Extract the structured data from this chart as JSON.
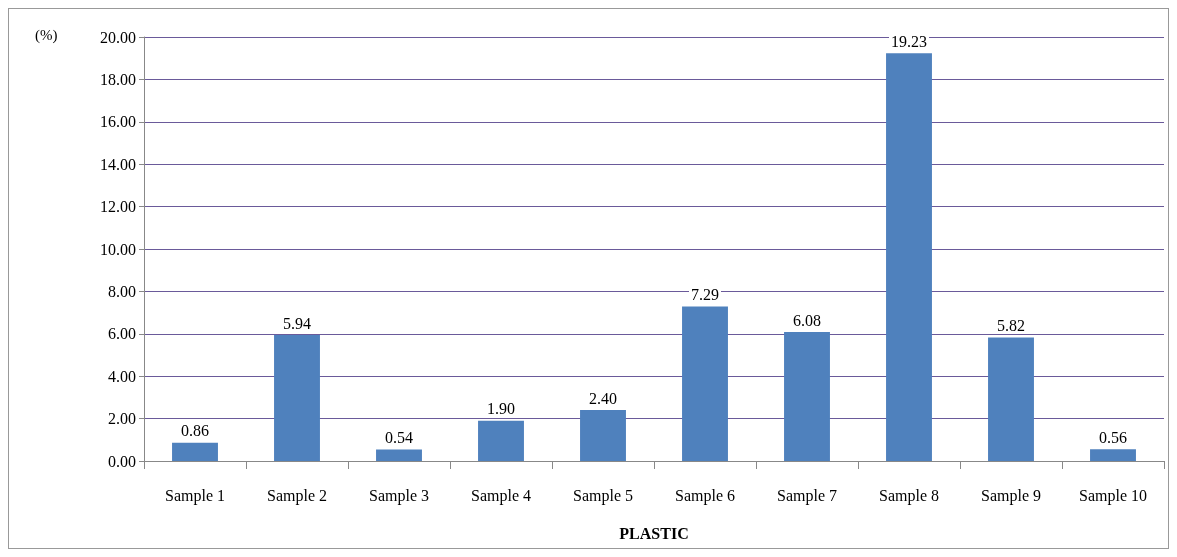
{
  "chart_data": {
    "type": "bar",
    "ylabel": "(%)",
    "xlabel": "PLASTIC",
    "categories": [
      "Sample 1",
      "Sample 2",
      "Sample 3",
      "Sample 4",
      "Sample 5",
      "Sample 6",
      "Sample 7",
      "Sample 8",
      "Sample 9",
      "Sample 10"
    ],
    "values": [
      0.86,
      5.94,
      0.54,
      1.9,
      2.4,
      7.29,
      6.08,
      19.23,
      5.82,
      0.56
    ],
    "value_labels": [
      "0.86",
      "5.94",
      "0.54",
      "1.90",
      "2.40",
      "7.29",
      "6.08",
      "19.23",
      "5.82",
      "0.56"
    ],
    "color": "#4f81bd",
    "ylim": [
      0,
      20
    ],
    "yticks": [
      {
        "value": 0,
        "label": "0.00"
      },
      {
        "value": 2,
        "label": "2.00"
      },
      {
        "value": 4,
        "label": "4.00"
      },
      {
        "value": 6,
        "label": "6.00"
      },
      {
        "value": 8,
        "label": "8.00"
      },
      {
        "value": 10,
        "label": "10.00"
      },
      {
        "value": 12,
        "label": "12.00"
      },
      {
        "value": 14,
        "label": "14.00"
      },
      {
        "value": 16,
        "label": "16.00"
      },
      {
        "value": 18,
        "label": "18.00"
      },
      {
        "value": 20,
        "label": "20.00"
      }
    ],
    "grid": "y"
  }
}
